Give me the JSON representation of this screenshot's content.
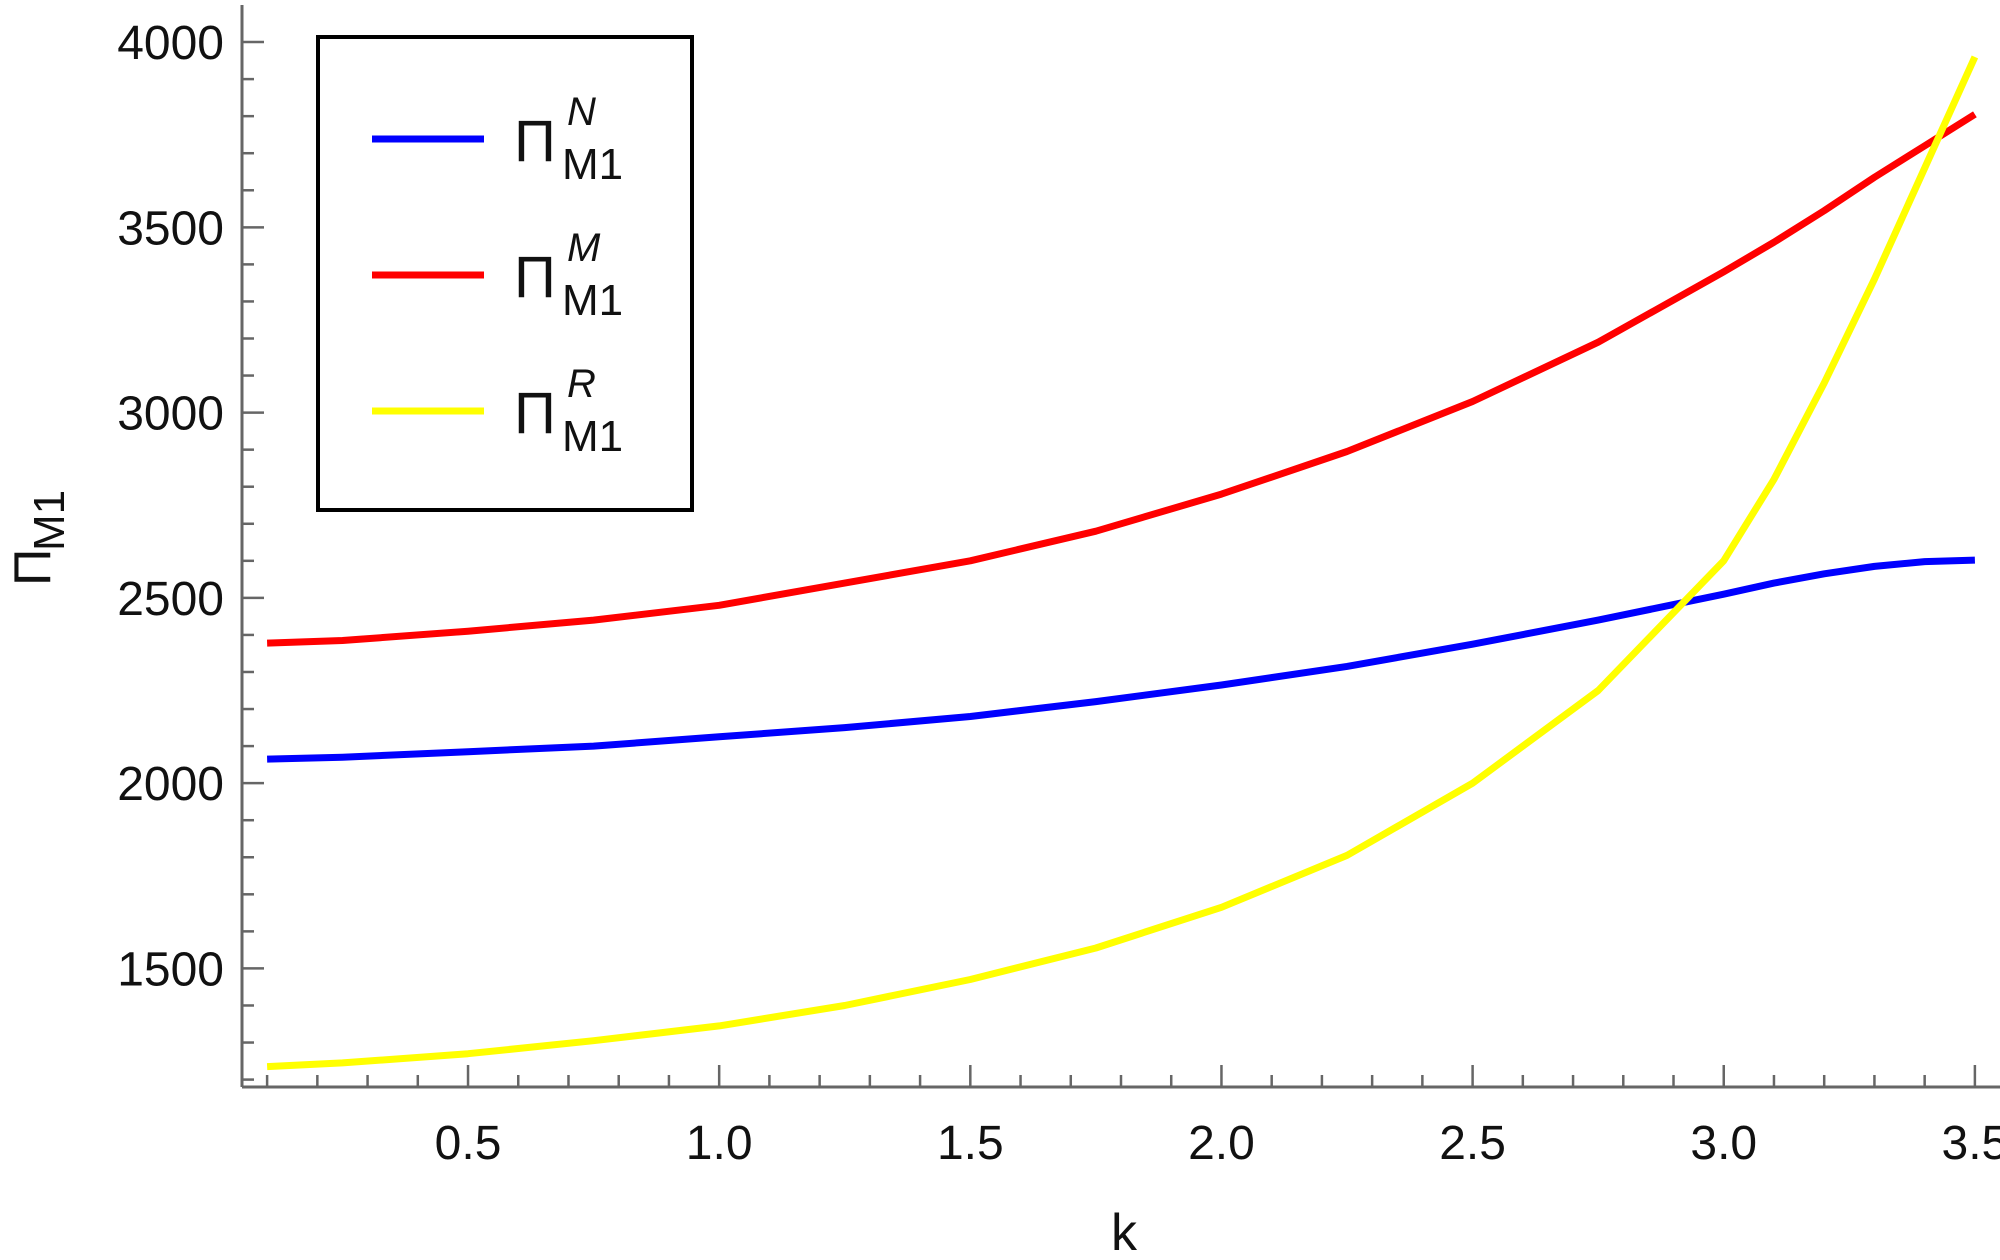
{
  "chart_data": {
    "type": "line",
    "title": "",
    "xlabel": "k",
    "ylabel": {
      "main": "Π",
      "sub": "M1"
    },
    "xlim": [
      0.05,
      3.55
    ],
    "ylim": [
      1180,
      4100
    ],
    "x_ticks": [
      0.5,
      1.0,
      1.5,
      2.0,
      2.5,
      3.0,
      3.5
    ],
    "x_tick_labels": [
      "0.5",
      "1.0",
      "1.5",
      "2.0",
      "2.5",
      "3.0",
      "3.5"
    ],
    "y_ticks": [
      1500,
      2000,
      2500,
      3000,
      3500,
      4000
    ],
    "y_tick_labels": [
      "1500",
      "2000",
      "2500",
      "3000",
      "3500",
      "4000"
    ],
    "grid": false,
    "legend_position": "top-left",
    "x": [
      0.1,
      0.25,
      0.5,
      0.75,
      1.0,
      1.25,
      1.5,
      1.75,
      2.0,
      2.25,
      2.5,
      2.75,
      3.0,
      3.1,
      3.2,
      3.3,
      3.4,
      3.5
    ],
    "series": [
      {
        "name": {
          "main": "Π",
          "sub": "M1",
          "sup": "N"
        },
        "color": "#0000ff",
        "values": [
          2065,
          2070,
          2085,
          2100,
          2125,
          2150,
          2180,
          2220,
          2265,
          2315,
          2375,
          2440,
          2510,
          2540,
          2565,
          2585,
          2598,
          2602
        ]
      },
      {
        "name": {
          "main": "Π",
          "sub": "M1",
          "sup": "M"
        },
        "color": "#ff0000",
        "values": [
          2378,
          2385,
          2410,
          2440,
          2480,
          2540,
          2600,
          2680,
          2780,
          2895,
          3030,
          3190,
          3380,
          3460,
          3545,
          3635,
          3720,
          3805
        ]
      },
      {
        "name": {
          "main": "Π",
          "sub": "M1",
          "sup": "R"
        },
        "color": "#ffff00",
        "values": [
          1235,
          1245,
          1270,
          1305,
          1345,
          1400,
          1470,
          1555,
          1665,
          1805,
          2000,
          2250,
          2600,
          2820,
          3080,
          3360,
          3660,
          3960
        ]
      }
    ]
  }
}
